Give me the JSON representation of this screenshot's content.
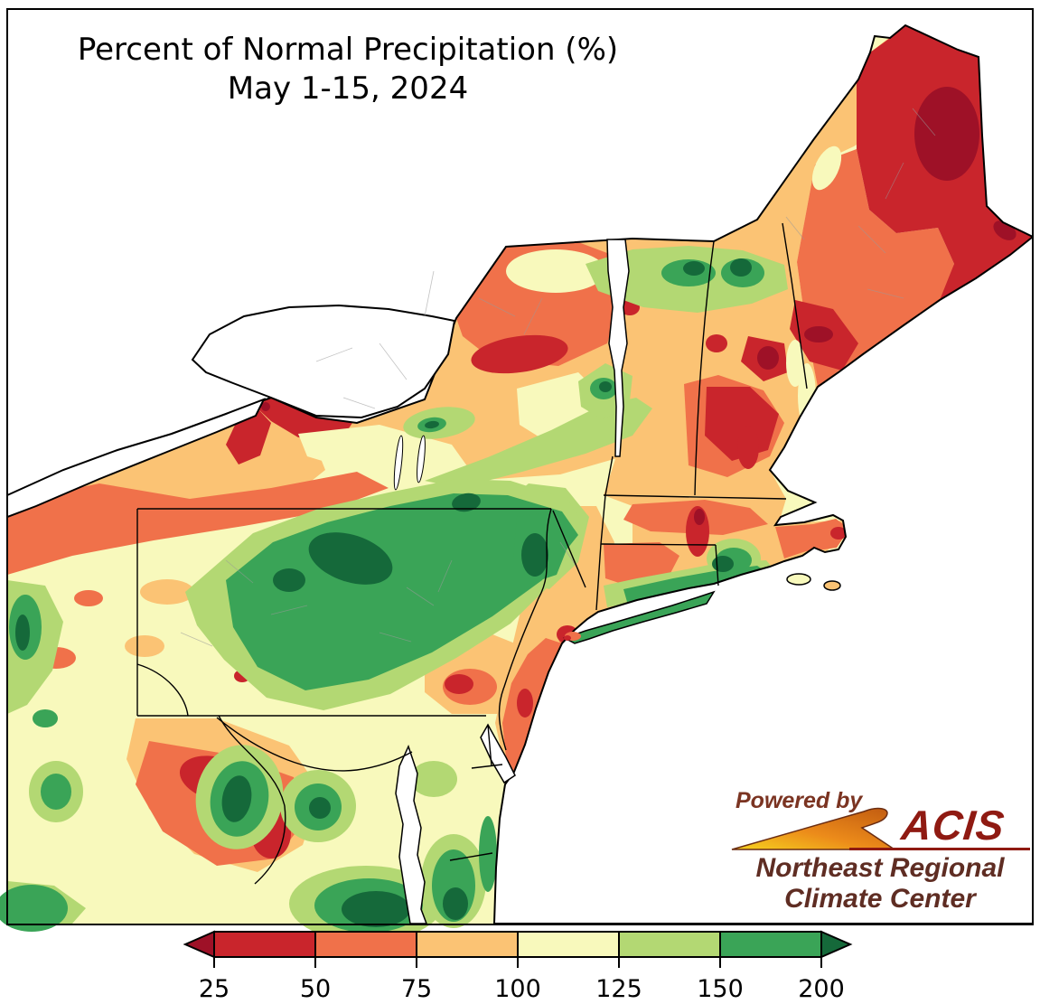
{
  "title": {
    "line1": "Percent of Normal Precipitation (%)",
    "line2": "May 1-15, 2024"
  },
  "logo": {
    "powered_by": "Powered by",
    "acis": "ACIS",
    "org_line1": "Northeast Regional",
    "org_line2": "Climate Center",
    "acis_color": "#8f1a12",
    "org_text_color": "#5f2d23",
    "swoosh_gradient": [
      "#f6d41f",
      "#ec8b1a",
      "#c05a10"
    ]
  },
  "chart_data": {
    "type": "choropleth_contour_map",
    "title": "Percent of Normal Precipitation (%)",
    "subtitle": "May 1-15, 2024",
    "region": "Northeastern United States (NY, PA, NJ, New England, WV/MD/VA fringe)",
    "variable": "percent of normal precipitation",
    "units": "%",
    "legend": {
      "orientation": "horizontal",
      "arrows": "both",
      "ticks": [
        25,
        50,
        75,
        100,
        125,
        150,
        200
      ],
      "bands": [
        {
          "range": "<25",
          "color": "#9e1127"
        },
        {
          "range": "25-50",
          "color": "#c9252c"
        },
        {
          "range": "50-75",
          "color": "#f0714a"
        },
        {
          "range": "75-100",
          "color": "#fbc374"
        },
        {
          "range": "100-125",
          "color": "#f8f9bc"
        },
        {
          "range": "125-150",
          "color": "#b3d873"
        },
        {
          "range": "150-200",
          "color": "#3aa457"
        },
        {
          "range": ">200",
          "color": "#15693a"
        }
      ]
    },
    "pattern_summary": {
      "driest_areas": "northern and eastern Maine (25-50%), Adirondacks, Lake Ontario shoreline, coastal New Jersey, parts of NH and WV",
      "wettest_areas": "central Pennsylvania (150-200%, locally >200%), Long Island, southern Connecticut coast, southern West Virginia / Virginia"
    }
  }
}
